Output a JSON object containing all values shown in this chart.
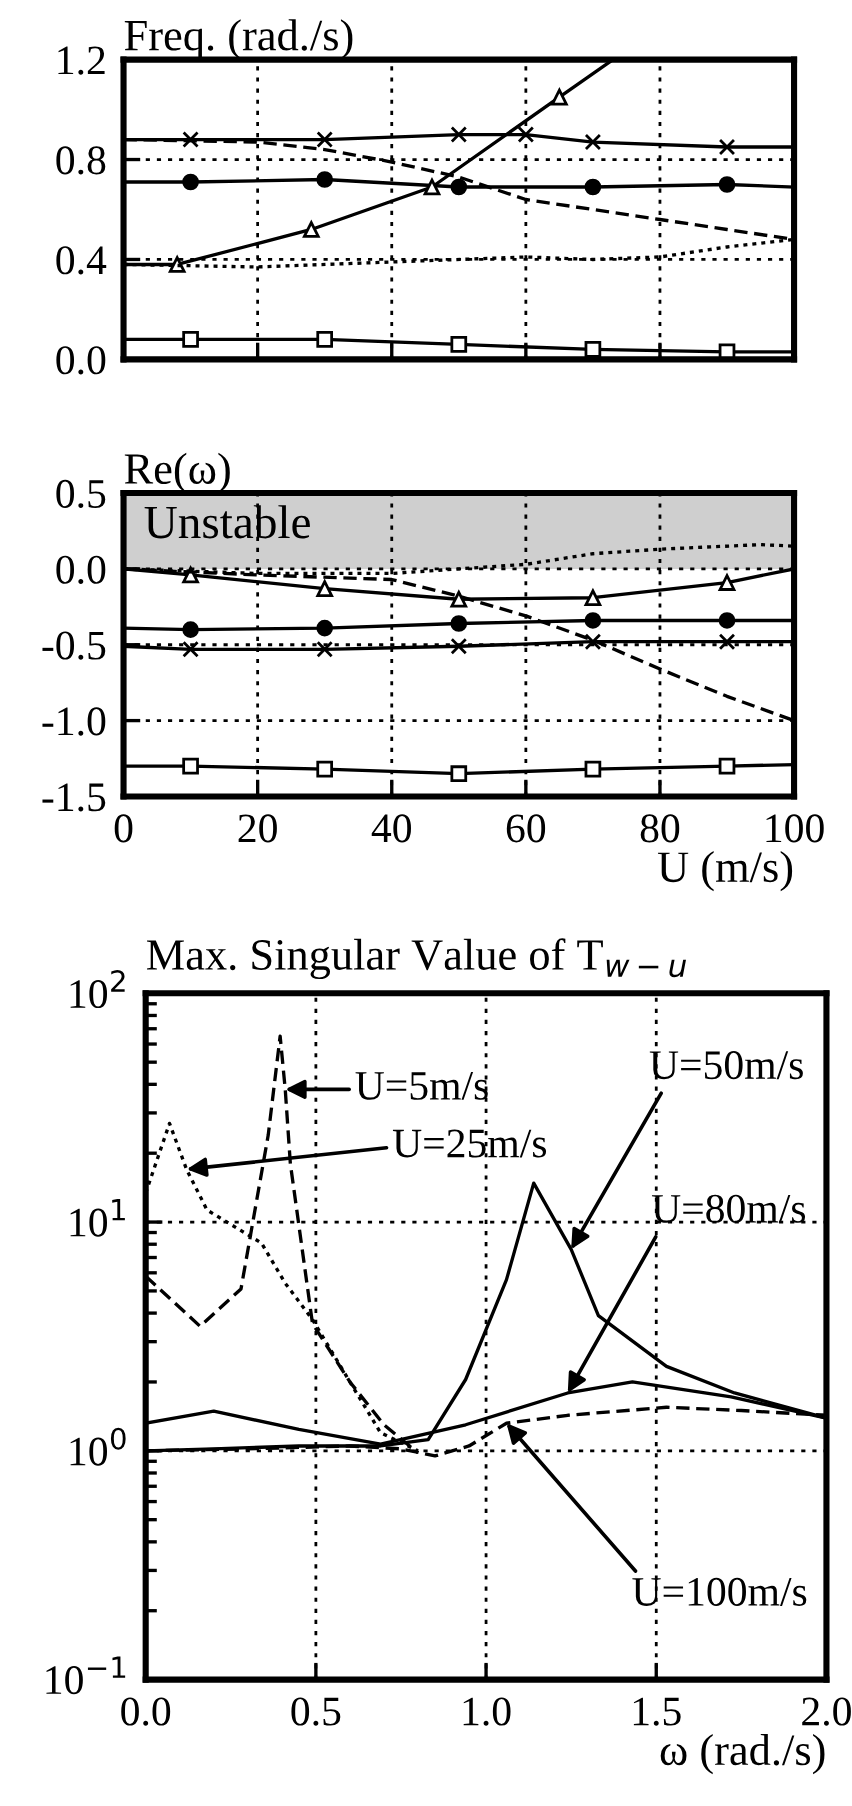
{
  "chart_data": [
    {
      "type": "line",
      "ylabel": "Freq. (rad./s)",
      "xlim": [
        0,
        100
      ],
      "ylim": [
        0,
        1.2
      ],
      "xticks": [
        0,
        20,
        40,
        60,
        80,
        100
      ],
      "yticks": [
        {
          "value": 0,
          "label": "0.0"
        },
        {
          "value": 0.4,
          "label": "0.4"
        },
        {
          "value": 0.8,
          "label": "0.8"
        },
        {
          "value": 1.2,
          "label": "1.2"
        }
      ],
      "tick_labels": "y",
      "grid": true,
      "series": [
        {
          "color": "#000000",
          "marker": "cross",
          "line_style": "solid",
          "x": [
            0,
            10,
            30,
            50,
            60,
            70,
            90,
            100
          ],
          "values": [
            0.88,
            0.88,
            0.88,
            0.9,
            0.9,
            0.87,
            0.85,
            0.85
          ]
        },
        {
          "color": "#000000",
          "marker": "circle",
          "line_style": "solid",
          "x": [
            0,
            10,
            30,
            50,
            70,
            90,
            100
          ],
          "values": [
            0.71,
            0.71,
            0.72,
            0.69,
            0.69,
            0.7,
            0.69
          ]
        },
        {
          "color": "#000000",
          "marker": "triangle",
          "line_style": "solid",
          "x": [
            0,
            8,
            28,
            46,
            65,
            73
          ],
          "values": [
            0.38,
            0.38,
            0.52,
            0.69,
            1.05,
            1.2
          ]
        },
        {
          "color": "#000000",
          "marker": "none",
          "line_style": "dashed",
          "x": [
            0,
            20,
            30,
            40,
            50,
            60,
            70,
            80,
            90,
            100
          ],
          "values": [
            0.88,
            0.87,
            0.84,
            0.79,
            0.73,
            0.64,
            0.6,
            0.56,
            0.52,
            0.48
          ]
        },
        {
          "color": "#000000",
          "marker": "none",
          "line_style": "dotted",
          "x": [
            0,
            20,
            40,
            60,
            70,
            80,
            90,
            100
          ],
          "values": [
            0.38,
            0.37,
            0.39,
            0.41,
            0.4,
            0.41,
            0.45,
            0.48
          ]
        },
        {
          "color": "#000000",
          "marker": "square",
          "line_style": "solid",
          "x": [
            0,
            10,
            30,
            50,
            70,
            90,
            100
          ],
          "values": [
            0.08,
            0.08,
            0.08,
            0.06,
            0.04,
            0.03,
            0.03
          ]
        }
      ]
    },
    {
      "type": "line",
      "ylabel": "Re(ω)",
      "xlabel": "U (m/s)",
      "xlim": [
        0,
        100
      ],
      "ylim": [
        -1.5,
        0.5
      ],
      "xticks": [
        0,
        20,
        40,
        60,
        80,
        100
      ],
      "yticks": [
        {
          "value": 0.5,
          "label": "0.5"
        },
        {
          "value": 0,
          "label": "0.0"
        },
        {
          "value": -0.5,
          "label": "-0.5"
        },
        {
          "value": -1.0,
          "label": "-1.0"
        },
        {
          "value": -1.5,
          "label": "-1.5"
        }
      ],
      "grid": true,
      "bands": [
        {
          "axis": "y",
          "from": 0,
          "to": 0.5,
          "label": "Unstable",
          "color": "#cfcfcf"
        }
      ],
      "series": [
        {
          "color": "#000000",
          "marker": "square",
          "line_style": "solid",
          "x": [
            0,
            10,
            30,
            50,
            70,
            90,
            100
          ],
          "values": [
            -1.3,
            -1.3,
            -1.32,
            -1.35,
            -1.32,
            -1.3,
            -1.29
          ]
        },
        {
          "color": "#000000",
          "marker": "cross",
          "line_style": "solid",
          "x": [
            0,
            10,
            30,
            50,
            70,
            90,
            100
          ],
          "values": [
            -0.51,
            -0.53,
            -0.53,
            -0.51,
            -0.48,
            -0.48,
            -0.48
          ]
        },
        {
          "color": "#000000",
          "marker": "circle",
          "line_style": "solid",
          "x": [
            0,
            10,
            30,
            50,
            70,
            90,
            100
          ],
          "values": [
            -0.39,
            -0.4,
            -0.39,
            -0.36,
            -0.34,
            -0.34,
            -0.34
          ]
        },
        {
          "color": "#000000",
          "marker": "triangle",
          "line_style": "solid",
          "x": [
            0,
            10,
            30,
            50,
            70,
            90,
            100
          ],
          "values": [
            0,
            -0.04,
            -0.13,
            -0.2,
            -0.19,
            -0.09,
            0
          ]
        },
        {
          "color": "#000000",
          "marker": "none",
          "line_style": "dashed",
          "x": [
            0,
            20,
            40,
            50,
            60,
            70,
            80,
            90,
            100
          ],
          "values": [
            0,
            -0.04,
            -0.07,
            -0.18,
            -0.31,
            -0.47,
            -0.66,
            -0.84,
            -1.0
          ]
        },
        {
          "color": "#000000",
          "marker": "none",
          "line_style": "dotted",
          "x": [
            0,
            20,
            40,
            60,
            70,
            80,
            95,
            100
          ],
          "values": [
            0,
            -0.03,
            -0.03,
            0.03,
            0.1,
            0.13,
            0.16,
            0.15
          ]
        }
      ]
    },
    {
      "type": "line",
      "title": "Max. Singular Value of T$_{w−u}$",
      "xlabel": "ω (rad./s)",
      "log": "y",
      "xlim": [
        0,
        2
      ],
      "ylim": [
        0.1,
        100
      ],
      "xticks": [
        {
          "value": 0,
          "label": "0.0"
        },
        {
          "value": 0.5,
          "label": "0.5"
        },
        {
          "value": 1.0,
          "label": "1.0"
        },
        {
          "value": 1.5,
          "label": "1.5"
        },
        {
          "value": 2.0,
          "label": "2.0"
        }
      ],
      "yticks": [
        {
          "value": 0.1,
          "label": "10$^{−1}$"
        },
        {
          "value": 1,
          "label": "10$^{0}$"
        },
        {
          "value": 10,
          "label": "10$^{1}$"
        },
        {
          "value": 100,
          "label": "10$^{2}$"
        }
      ],
      "grid": true,
      "annotations": [
        {
          "text": "U=5m/s",
          "x": 0.41,
          "y": 38
        },
        {
          "text": "U=25m/s",
          "x": 0.12,
          "y": 17
        },
        {
          "text": "U=50m/s",
          "x": 1.25,
          "y": 7.6
        },
        {
          "text": "U=80m/s",
          "x": 1.24,
          "y": 1.79
        },
        {
          "text": "U=100m/s",
          "x": 1.06,
          "y": 1.32
        }
      ],
      "series": [
        {
          "color": "#000000",
          "marker": "none",
          "line_style": "dashed",
          "x": [
            0,
            0.16,
            0.28,
            0.36,
            0.395,
            0.41,
            0.425,
            0.49,
            0.6,
            0.7,
            0.8
          ],
          "values": [
            5.8,
            3.5,
            5.1,
            24,
            65,
            38,
            18,
            3.6,
            2.0,
            1.3,
            0.98
          ]
        },
        {
          "color": "#000000",
          "marker": "none",
          "line_style": "dotted",
          "x": [
            0,
            0.07,
            0.12,
            0.18,
            0.34,
            0.41,
            0.49,
            0.6,
            0.69,
            0.8
          ],
          "values": [
            13.4,
            27,
            17,
            11.3,
            8.1,
            5.4,
            3.75,
            2.0,
            1.2,
            1.0
          ]
        },
        {
          "color": "#000000",
          "marker": "none",
          "line_style": "solid",
          "x": [
            0,
            0.2,
            0.45,
            0.69,
            0.83,
            0.94,
            1.06,
            1.14,
            1.25,
            1.33,
            1.53,
            1.73,
            2.0
          ],
          "values": [
            1.0,
            1.02,
            1.05,
            1.05,
            1.12,
            2.05,
            5.6,
            14.8,
            7.6,
            3.9,
            2.34,
            1.79,
            1.39
          ]
        },
        {
          "color": "#000000",
          "marker": "none",
          "line_style": "solid",
          "x": [
            0,
            0.2,
            0.45,
            0.69,
            0.94,
            1.24,
            1.43,
            1.72,
            2.0
          ],
          "values": [
            1.32,
            1.49,
            1.24,
            1.07,
            1.3,
            1.79,
            2.0,
            1.72,
            1.39
          ]
        },
        {
          "color": "#000000",
          "marker": "none",
          "line_style": "dashed",
          "x": [
            0,
            0.3,
            0.6,
            0.75,
            0.85,
            0.95,
            1.06,
            1.24,
            1.53,
            1.75,
            2.0
          ],
          "values": [
            1.0,
            1.02,
            1.05,
            1.02,
            0.95,
            1.05,
            1.32,
            1.43,
            1.55,
            1.5,
            1.43
          ]
        }
      ]
    }
  ]
}
